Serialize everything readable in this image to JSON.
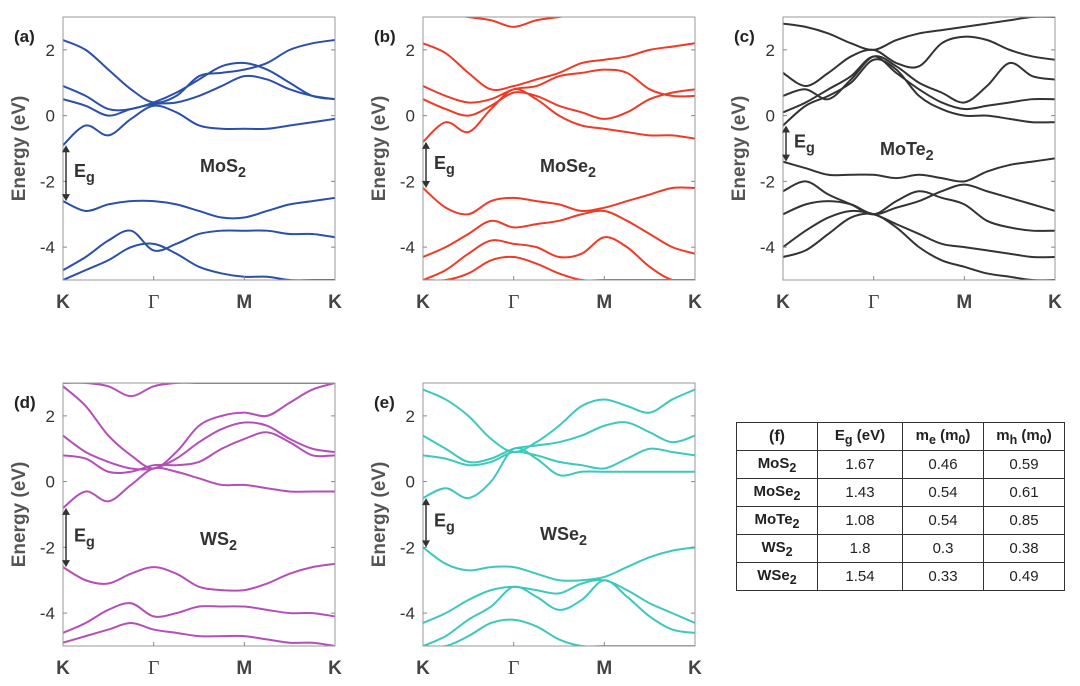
{
  "axis": {
    "ylabel": "Energy (eV)",
    "ylim": [
      -5,
      3
    ],
    "yticks": [
      -4,
      -2,
      0,
      2
    ],
    "xticks": [
      "K",
      "Γ",
      "M",
      "K"
    ],
    "kpath_positions": [
      0,
      1,
      2,
      3
    ]
  },
  "chart_data": [
    {
      "type": "line",
      "panel_label": "(a)",
      "material": "MoS",
      "material_sub": "2",
      "color": "#2b50aa",
      "gap_label": "E",
      "gap_sub": "g",
      "gap_range": [
        -2.6,
        -0.9
      ],
      "x": [
        0,
        0.25,
        0.5,
        0.75,
        1,
        1.25,
        1.5,
        1.75,
        2,
        2.25,
        2.5,
        2.75,
        3
      ],
      "series": [
        {
          "name": "cb4",
          "values": [
            2.3,
            2.0,
            1.4,
            0.8,
            0.4,
            0.6,
            1.2,
            1.3,
            1.4,
            1.6,
            2.0,
            2.2,
            2.3
          ]
        },
        {
          "name": "cb3",
          "values": [
            0.9,
            0.6,
            0.2,
            0.2,
            0.4,
            0.7,
            1.1,
            1.5,
            1.6,
            1.4,
            1.0,
            0.6,
            0.5
          ]
        },
        {
          "name": "cb2",
          "values": [
            0.5,
            0.3,
            0.0,
            0.2,
            0.35,
            0.4,
            0.6,
            0.9,
            1.2,
            1.1,
            0.8,
            0.6,
            0.5
          ]
        },
        {
          "name": "cb1",
          "values": [
            -0.9,
            -0.3,
            -0.6,
            -0.1,
            0.3,
            0.1,
            -0.3,
            -0.4,
            -0.4,
            -0.4,
            -0.3,
            -0.2,
            -0.1
          ]
        },
        {
          "name": "vb1",
          "values": [
            -2.6,
            -2.9,
            -2.7,
            -2.6,
            -2.6,
            -2.7,
            -2.9,
            -3.1,
            -3.1,
            -2.9,
            -2.7,
            -2.6,
            -2.5
          ]
        },
        {
          "name": "vb2",
          "values": [
            -4.7,
            -4.3,
            -3.8,
            -3.5,
            -4.1,
            -3.9,
            -3.6,
            -3.5,
            -3.5,
            -3.5,
            -3.6,
            -3.6,
            -3.7
          ]
        },
        {
          "name": "vb3",
          "values": [
            -5.0,
            -4.7,
            -4.4,
            -4.0,
            -3.9,
            -4.2,
            -4.6,
            -4.8,
            -4.9,
            -4.9,
            -5.0,
            -5.0,
            -5.0
          ]
        }
      ]
    },
    {
      "type": "line",
      "panel_label": "(b)",
      "material": "MoSe",
      "material_sub": "2",
      "color": "#ee3b27",
      "gap_label": "E",
      "gap_sub": "g",
      "gap_range": [
        -2.2,
        -0.8
      ],
      "x": [
        0,
        0.25,
        0.5,
        0.75,
        1,
        1.25,
        1.5,
        1.75,
        2,
        2.25,
        2.5,
        2.75,
        3
      ],
      "series": [
        {
          "name": "cb5",
          "values": [
            3.2,
            3.1,
            3.0,
            2.9,
            2.7,
            2.9,
            3.0,
            3.1,
            3.2,
            3.2,
            3.2,
            3.2,
            3.2
          ]
        },
        {
          "name": "cb4",
          "values": [
            2.2,
            1.9,
            1.3,
            0.8,
            0.9,
            1.1,
            1.3,
            1.6,
            1.7,
            1.8,
            2.0,
            2.1,
            2.2
          ]
        },
        {
          "name": "cb3",
          "values": [
            0.9,
            0.6,
            0.4,
            0.5,
            0.8,
            0.9,
            1.2,
            1.3,
            1.4,
            1.3,
            0.8,
            0.6,
            0.6
          ]
        },
        {
          "name": "cb2",
          "values": [
            0.5,
            0.2,
            0.0,
            0.3,
            0.7,
            0.6,
            0.3,
            0.1,
            -0.1,
            0.1,
            0.5,
            0.7,
            0.8
          ]
        },
        {
          "name": "cb1",
          "values": [
            -0.8,
            -0.2,
            -0.5,
            0.2,
            0.8,
            0.5,
            0.0,
            -0.3,
            -0.4,
            -0.5,
            -0.6,
            -0.6,
            -0.7
          ]
        },
        {
          "name": "vb1",
          "values": [
            -2.2,
            -2.8,
            -3.0,
            -2.6,
            -2.5,
            -2.6,
            -2.7,
            -2.9,
            -2.8,
            -2.6,
            -2.4,
            -2.2,
            -2.2
          ]
        },
        {
          "name": "vb2",
          "values": [
            -4.3,
            -4.0,
            -3.6,
            -3.2,
            -3.4,
            -3.3,
            -3.2,
            -3.0,
            -2.9,
            -3.2,
            -3.6,
            -4.0,
            -4.2
          ]
        },
        {
          "name": "vb3",
          "values": [
            -5.0,
            -4.7,
            -4.2,
            -3.8,
            -3.9,
            -4.0,
            -4.3,
            -4.2,
            -3.7,
            -4.0,
            -4.6,
            -5.0,
            -5.0
          ]
        },
        {
          "name": "vb4",
          "values": [
            -5.0,
            -5.0,
            -4.8,
            -4.4,
            -4.3,
            -4.5,
            -4.8,
            -5.0,
            -5.0,
            -5.0,
            -5.0,
            -5.0,
            -5.0
          ]
        }
      ]
    },
    {
      "type": "line",
      "panel_label": "(c)",
      "material": "MoTe",
      "material_sub": "2",
      "color": "#333333",
      "gap_label": "E",
      "gap_sub": "g",
      "gap_range": [
        -1.4,
        -0.3
      ],
      "x": [
        0,
        0.25,
        0.5,
        0.75,
        1,
        1.25,
        1.5,
        1.75,
        2,
        2.25,
        2.5,
        2.75,
        3
      ],
      "series": [
        {
          "name": "cb5",
          "values": [
            2.8,
            2.7,
            2.5,
            2.2,
            2.0,
            2.3,
            2.5,
            2.6,
            2.7,
            2.8,
            2.9,
            3.0,
            3.0
          ]
        },
        {
          "name": "cb4",
          "values": [
            1.3,
            0.9,
            1.3,
            1.8,
            2.0,
            1.6,
            1.5,
            2.2,
            2.4,
            2.3,
            2.0,
            1.8,
            1.7
          ]
        },
        {
          "name": "cb3",
          "values": [
            0.6,
            0.8,
            0.5,
            1.1,
            1.8,
            1.5,
            1.0,
            0.7,
            0.4,
            0.9,
            1.6,
            1.2,
            1.1
          ]
        },
        {
          "name": "cb2",
          "values": [
            0.1,
            0.4,
            0.8,
            1.2,
            1.8,
            1.3,
            0.8,
            0.4,
            0.2,
            0.3,
            0.4,
            0.5,
            0.5
          ]
        },
        {
          "name": "cb1",
          "values": [
            -0.3,
            0.3,
            0.6,
            1.0,
            1.7,
            1.4,
            0.6,
            0.2,
            0.0,
            0.0,
            -0.1,
            -0.2,
            -0.2
          ]
        },
        {
          "name": "vb1",
          "values": [
            -1.4,
            -1.6,
            -1.8,
            -1.8,
            -1.8,
            -1.9,
            -1.8,
            -1.9,
            -2.0,
            -1.7,
            -1.5,
            -1.4,
            -1.3
          ]
        },
        {
          "name": "vb2",
          "values": [
            -2.3,
            -2.0,
            -2.4,
            -2.7,
            -3.0,
            -2.6,
            -2.3,
            -2.5,
            -2.7,
            -3.2,
            -3.4,
            -3.5,
            -3.5
          ]
        },
        {
          "name": "vb3",
          "values": [
            -3.0,
            -2.7,
            -2.6,
            -2.7,
            -3.0,
            -2.8,
            -2.6,
            -2.3,
            -2.1,
            -2.3,
            -2.5,
            -2.7,
            -2.9
          ]
        },
        {
          "name": "vb4",
          "values": [
            -4.0,
            -3.5,
            -3.1,
            -2.9,
            -3.0,
            -3.3,
            -3.6,
            -3.9,
            -4.0,
            -4.1,
            -4.2,
            -4.3,
            -4.3
          ]
        },
        {
          "name": "vb5",
          "values": [
            -4.3,
            -4.1,
            -3.6,
            -3.1,
            -3.0,
            -3.4,
            -4.0,
            -4.4,
            -4.6,
            -4.8,
            -4.9,
            -5.0,
            -5.0
          ]
        }
      ]
    },
    {
      "type": "line",
      "panel_label": "(d)",
      "material": "WS",
      "material_sub": "2",
      "color": "#b44fb8",
      "gap_label": "E",
      "gap_sub": "g",
      "gap_range": [
        -2.6,
        -0.8
      ],
      "x": [
        0,
        0.25,
        0.5,
        0.75,
        1,
        1.25,
        1.5,
        1.75,
        2,
        2.25,
        2.5,
        2.75,
        3
      ],
      "series": [
        {
          "name": "cb5",
          "values": [
            3.0,
            3.0,
            2.9,
            2.6,
            2.9,
            3.0,
            3.0,
            3.0,
            3.0,
            3.0,
            3.0,
            3.0,
            3.0
          ]
        },
        {
          "name": "cb4",
          "values": [
            2.9,
            2.3,
            1.4,
            0.8,
            0.4,
            0.9,
            1.7,
            2.0,
            2.1,
            2.0,
            2.4,
            2.8,
            3.0
          ]
        },
        {
          "name": "cb3",
          "values": [
            1.4,
            0.9,
            0.6,
            0.4,
            0.4,
            0.7,
            1.2,
            1.6,
            1.8,
            1.7,
            1.3,
            1.0,
            0.9
          ]
        },
        {
          "name": "cb2",
          "values": [
            0.8,
            0.7,
            0.3,
            0.3,
            0.5,
            0.5,
            0.6,
            1.0,
            1.3,
            1.5,
            1.2,
            0.8,
            0.8
          ]
        },
        {
          "name": "cb1",
          "values": [
            -0.8,
            -0.3,
            -0.6,
            -0.1,
            0.4,
            0.3,
            0.1,
            -0.1,
            -0.1,
            -0.2,
            -0.3,
            -0.3,
            -0.3
          ]
        },
        {
          "name": "vb1",
          "values": [
            -2.6,
            -3.0,
            -3.1,
            -2.8,
            -2.6,
            -2.8,
            -3.2,
            -3.3,
            -3.3,
            -3.1,
            -2.8,
            -2.6,
            -2.5
          ]
        },
        {
          "name": "vb2",
          "values": [
            -4.6,
            -4.3,
            -3.9,
            -3.7,
            -4.1,
            -4.0,
            -3.8,
            -3.8,
            -3.8,
            -3.9,
            -4.0,
            -4.0,
            -4.1
          ]
        },
        {
          "name": "vb3",
          "values": [
            -4.9,
            -4.7,
            -4.5,
            -4.3,
            -4.5,
            -4.6,
            -4.7,
            -4.7,
            -4.7,
            -4.8,
            -4.9,
            -4.9,
            -5.0
          ]
        }
      ]
    },
    {
      "type": "line",
      "panel_label": "(e)",
      "material": "WSe",
      "material_sub": "2",
      "color": "#3cc8bd",
      "gap_label": "E",
      "gap_sub": "g",
      "gap_range": [
        -2.0,
        -0.5
      ],
      "x": [
        0,
        0.25,
        0.5,
        0.75,
        1,
        1.25,
        1.5,
        1.75,
        2,
        2.25,
        2.5,
        2.75,
        3
      ],
      "series": [
        {
          "name": "cb4",
          "values": [
            2.8,
            2.5,
            2.0,
            1.3,
            0.9,
            1.2,
            1.7,
            2.3,
            2.5,
            2.3,
            2.1,
            2.5,
            2.8
          ]
        },
        {
          "name": "cb3",
          "values": [
            1.4,
            1.0,
            0.6,
            0.7,
            1.0,
            1.1,
            1.2,
            1.4,
            1.7,
            1.8,
            1.5,
            1.2,
            1.4
          ]
        },
        {
          "name": "cb2",
          "values": [
            0.8,
            0.7,
            0.5,
            0.6,
            0.9,
            0.8,
            0.6,
            0.5,
            0.4,
            0.7,
            1.0,
            0.9,
            0.8
          ]
        },
        {
          "name": "cb1",
          "values": [
            -0.5,
            -0.2,
            -0.5,
            0.0,
            1.0,
            0.7,
            0.2,
            0.3,
            0.3,
            0.3,
            0.3,
            0.3,
            0.3
          ]
        },
        {
          "name": "vb1",
          "values": [
            -2.0,
            -2.5,
            -2.7,
            -2.6,
            -2.6,
            -2.8,
            -3.0,
            -3.0,
            -2.9,
            -2.6,
            -2.3,
            -2.1,
            -2.0
          ]
        },
        {
          "name": "vb2",
          "values": [
            -4.3,
            -4.0,
            -3.6,
            -3.3,
            -3.2,
            -3.3,
            -3.4,
            -3.1,
            -3.0,
            -3.3,
            -3.7,
            -4.0,
            -4.3
          ]
        },
        {
          "name": "vb3",
          "values": [
            -5.0,
            -4.7,
            -4.2,
            -3.8,
            -3.2,
            -3.5,
            -3.9,
            -3.6,
            -3.0,
            -3.5,
            -4.1,
            -4.5,
            -4.6
          ]
        },
        {
          "name": "vb4",
          "values": [
            -5.0,
            -5.0,
            -4.7,
            -4.3,
            -4.2,
            -4.4,
            -4.8,
            -5.0,
            -5.0,
            -5.0,
            -5.0,
            -5.0,
            -5.0
          ]
        }
      ]
    },
    {
      "type": "table",
      "panel_label": "(f)",
      "columns": [
        {
          "main": "E",
          "sub": "g",
          "tail": " (eV)"
        },
        {
          "main": "m",
          "sub": "e",
          "mid": " (m",
          "sub2": "0",
          "tail": ")"
        },
        {
          "main": "m",
          "sub": "h",
          "mid": " (m",
          "sub2": "0",
          "tail": ")"
        }
      ],
      "rows": [
        {
          "name": "MoS",
          "sub": "2",
          "values": [
            "1.67",
            "0.46",
            "0.59"
          ]
        },
        {
          "name": "MoSe",
          "sub": "2",
          "values": [
            "1.43",
            "0.54",
            "0.61"
          ]
        },
        {
          "name": "MoTe",
          "sub": "2",
          "values": [
            "1.08",
            "0.54",
            "0.85"
          ]
        },
        {
          "name": "WS",
          "sub": "2",
          "values": [
            "1.8",
            "0.3",
            "0.38"
          ]
        },
        {
          "name": "WSe",
          "sub": "2",
          "values": [
            "1.54",
            "0.33",
            "0.49"
          ]
        }
      ]
    }
  ]
}
